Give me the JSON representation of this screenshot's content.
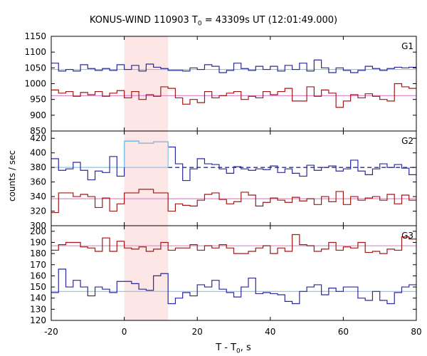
{
  "chart_data": {
    "type": "line",
    "title": {
      "prefix": "KONUS-WIND 110903 T",
      "sub": "0",
      "suffix": " = 43309s UT (12:01:49.000)"
    },
    "xlabel": {
      "prefix": "T - T",
      "sub": "0",
      "suffix": ", s"
    },
    "ylabel": "counts / sec",
    "xlim": [
      -20,
      80
    ],
    "xticks": [
      -20,
      0,
      20,
      40,
      60,
      80
    ],
    "shaded_interval": [
      0,
      12
    ],
    "colors": {
      "blue_series": "#2a2a9a",
      "red_series": "#a01818",
      "blue_background": "#7ec8ee",
      "red_background": "#e08ad0",
      "shade": "#fde6e6"
    },
    "panels": [
      {
        "label": "G1",
        "ylim": [
          850,
          1150
        ],
        "yticks": [
          850,
          900,
          950,
          1000,
          1050,
          1100,
          1150
        ],
        "bin_edges": [
          -20,
          -18,
          -16,
          -14,
          -12,
          -10,
          -8,
          -6,
          -4,
          -2,
          0,
          2,
          4,
          6,
          8,
          10,
          12,
          14,
          16,
          18,
          20,
          22,
          24,
          26,
          28,
          30,
          32,
          34,
          36,
          38,
          40,
          42,
          44,
          46,
          48,
          50,
          52,
          54,
          56,
          58,
          60,
          62,
          64,
          66,
          68,
          70,
          72,
          74,
          76,
          78,
          80
        ],
        "series": [
          {
            "color_key": "blue_series",
            "background": 1045,
            "background_style": "solid",
            "values": [
              1065,
              1040,
              1045,
              1040,
              1060,
              1048,
              1042,
              1048,
              1042,
              1060,
              1045,
              1058,
              1040,
              1062,
              1052,
              1048,
              1042,
              1042,
              1040,
              1050,
              1045,
              1060,
              1055,
              1035,
              1042,
              1065,
              1048,
              1042,
              1055,
              1045,
              1055,
              1040,
              1058,
              1045,
              1065,
              1040,
              1075,
              1050,
              1035,
              1050,
              1042,
              1035,
              1042,
              1055,
              1048,
              1042,
              1048,
              1052,
              1050,
              1052
            ]
          },
          {
            "color_key": "red_series",
            "background": 962,
            "background_style": "solid",
            "values": [
              980,
              970,
              975,
              960,
              972,
              965,
              975,
              960,
              970,
              978,
              955,
              975,
              950,
              965,
              960,
              990,
              985,
              955,
              935,
              950,
              940,
              975,
              955,
              962,
              970,
              975,
              950,
              960,
              955,
              975,
              965,
              975,
              985,
              945,
              945,
              990,
              960,
              980,
              970,
              925,
              945,
              965,
              955,
              968,
              960,
              950,
              945,
              1000,
              990,
              985
            ]
          }
        ]
      },
      {
        "label": "G2",
        "ylim": [
          300,
          430
        ],
        "yticks": [
          300,
          320,
          340,
          360,
          380,
          400,
          420
        ],
        "bin_edges": [
          -20,
          -18,
          -16,
          -14,
          -12,
          -10,
          -8,
          -6,
          -4,
          -2,
          0,
          4,
          8,
          12,
          14,
          16,
          18,
          20,
          22,
          24,
          26,
          28,
          30,
          32,
          34,
          36,
          38,
          40,
          42,
          44,
          46,
          48,
          50,
          52,
          54,
          56,
          58,
          60,
          62,
          64,
          66,
          68,
          70,
          72,
          74,
          76,
          78,
          80
        ],
        "series": [
          {
            "color_key": "blue_series",
            "background": 380,
            "background_style": "dashed",
            "highlight_until": 12,
            "values": [
              392,
              376,
              378,
              387,
              376,
              363,
              375,
              373,
              395,
              368,
              416,
              413,
              415,
              408,
              385,
              362,
              378,
              392,
              385,
              384,
              378,
              372,
              381,
              378,
              376,
              378,
              377,
              382,
              373,
              378,
              372,
              368,
              383,
              376,
              380,
              382,
              375,
              378,
              390,
              375,
              370,
              378,
              385,
              380,
              384,
              379,
              370
            ]
          },
          {
            "color_key": "red_series",
            "background": 337,
            "background_style": "solid",
            "values": [
              318,
              345,
              345,
              340,
              343,
              340,
              325,
              338,
              320,
              330,
              345,
              350,
              345,
              320,
              330,
              328,
              327,
              335,
              343,
              345,
              336,
              330,
              333,
              346,
              342,
              327,
              332,
              338,
              335,
              332,
              339,
              334,
              337,
              329,
              340,
              333,
              347,
              329,
              340,
              335,
              338,
              340,
              335,
              343,
              330,
              342,
              335
            ]
          }
        ]
      },
      {
        "label": "G3",
        "ylim": [
          120,
          205
        ],
        "yticks": [
          120,
          130,
          140,
          150,
          160,
          170,
          180,
          190,
          200
        ],
        "bin_edges": [
          -20,
          -18,
          -16,
          -14,
          -12,
          -10,
          -8,
          -6,
          -4,
          -2,
          0,
          2,
          4,
          6,
          8,
          10,
          12,
          14,
          16,
          18,
          20,
          22,
          24,
          26,
          28,
          30,
          32,
          34,
          36,
          38,
          40,
          42,
          44,
          46,
          48,
          50,
          52,
          54,
          56,
          58,
          60,
          62,
          64,
          66,
          68,
          70,
          72,
          74,
          76,
          78,
          80
        ],
        "series": [
          {
            "color_key": "red_series",
            "background": 187,
            "background_style": "solid",
            "values": [
              183,
              188,
              190,
              190,
              186,
              185,
              182,
              194,
              182,
              191,
              185,
              184,
              186,
              182,
              184,
              190,
              183,
              185,
              185,
              188,
              183,
              187,
              185,
              188,
              185,
              180,
              180,
              182,
              185,
              187,
              180,
              185,
              182,
              197,
              188,
              187,
              182,
              184,
              190,
              183,
              186,
              185,
              190,
              181,
              182,
              180,
              184,
              183,
              195,
              193
            ]
          },
          {
            "color_key": "blue_series",
            "background": 146,
            "background_style": "solid",
            "values": [
              145,
              166,
              150,
              156,
              150,
              142,
              150,
              148,
              145,
              155,
              155,
              153,
              148,
              147,
              160,
              162,
              135,
              140,
              145,
              142,
              152,
              150,
              156,
              148,
              145,
              141,
              150,
              158,
              144,
              145,
              144,
              143,
              137,
              135,
              146,
              150,
              152,
              143,
              149,
              146,
              150,
              150,
              140,
              138,
              146,
              138,
              135,
              145,
              150,
              152
            ]
          }
        ]
      }
    ]
  }
}
